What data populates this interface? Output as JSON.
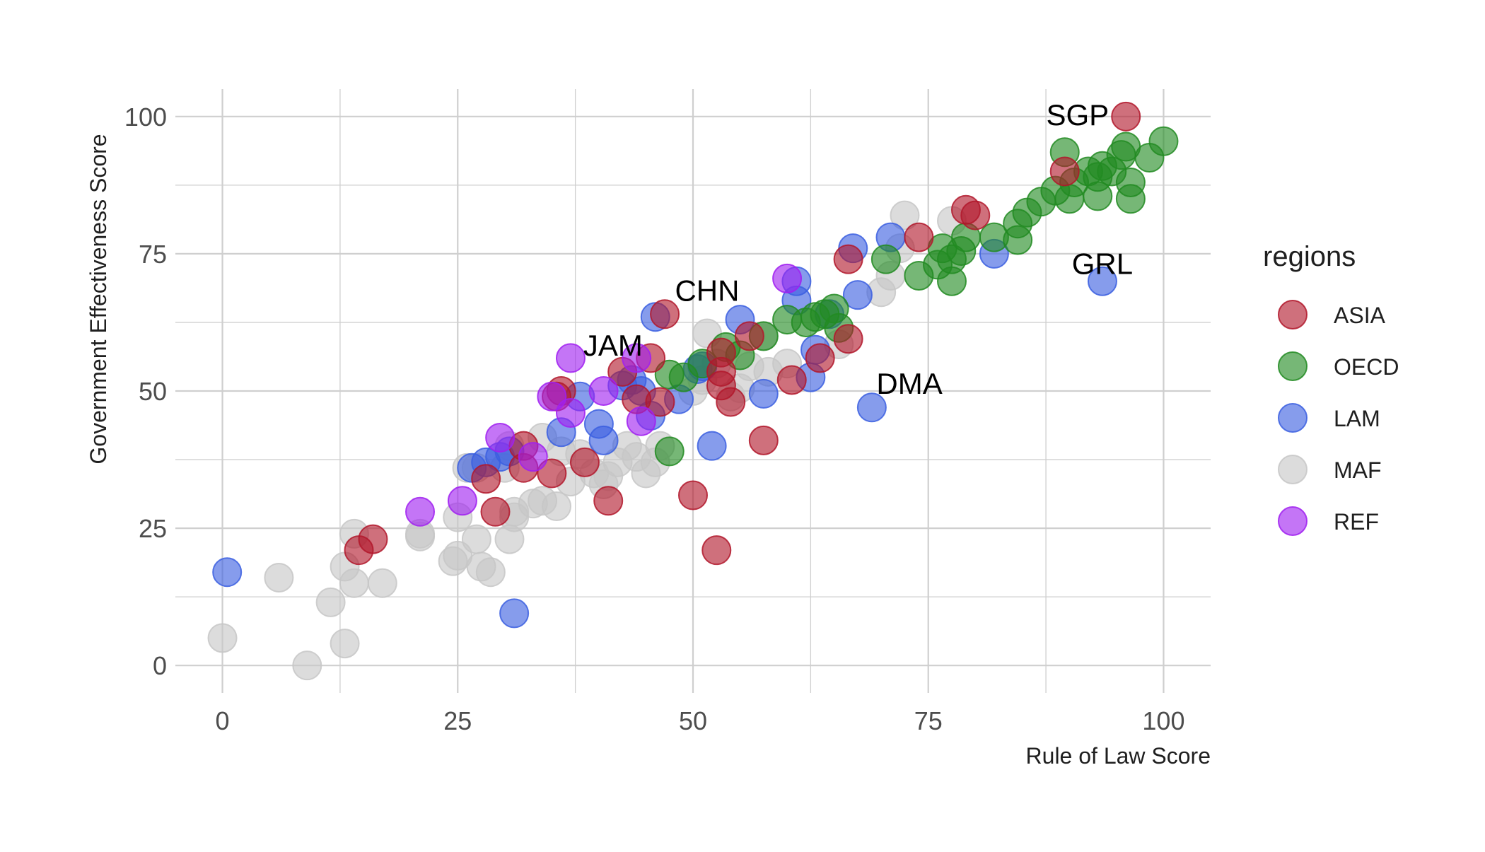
{
  "colors": {
    "ASIA": "#b2182b",
    "OECD": "#228b22",
    "LAM": "#3b5fe0",
    "MAF": "#c7c7c7",
    "REF": "#a020f0",
    "grid": "#cfcfcf",
    "background": "#ffffff"
  },
  "chart_data": {
    "type": "scatter",
    "title": "",
    "xlabel": "Rule of Law Score",
    "ylabel": "Government Effectiveness Score",
    "xlim": [
      -5,
      105
    ],
    "ylim": [
      -5,
      105
    ],
    "x_ticks": [
      0,
      25,
      50,
      75,
      100
    ],
    "y_ticks": [
      0,
      25,
      50,
      75,
      100
    ],
    "x_tick_labels": [
      "0",
      "25",
      "50",
      "75",
      "100"
    ],
    "y_tick_labels": [
      "0",
      "25",
      "50",
      "75",
      "100"
    ],
    "grid": true,
    "legend": {
      "title": "regions",
      "placement": "right",
      "entries": [
        "ASIA",
        "OECD",
        "LAM",
        "MAF",
        "REF"
      ]
    },
    "series": [
      {
        "name": "ASIA",
        "points": [
          [
            96,
            100
          ],
          [
            89.5,
            90
          ],
          [
            79,
            83
          ],
          [
            80,
            82
          ],
          [
            74,
            78
          ],
          [
            66.5,
            74
          ],
          [
            47,
            64
          ],
          [
            45.5,
            56
          ],
          [
            66.5,
            59.5
          ],
          [
            63.5,
            56
          ],
          [
            60.5,
            52
          ],
          [
            57.5,
            41
          ],
          [
            56,
            60
          ],
          [
            53,
            57
          ],
          [
            53,
            53.5
          ],
          [
            53,
            51
          ],
          [
            54,
            48
          ],
          [
            50,
            31
          ],
          [
            52.5,
            21
          ],
          [
            46.5,
            48
          ],
          [
            44,
            48.5
          ],
          [
            42.5,
            53.5
          ],
          [
            36,
            50
          ],
          [
            35.5,
            49
          ],
          [
            38.5,
            37
          ],
          [
            41,
            30
          ],
          [
            35,
            35
          ],
          [
            32,
            40
          ],
          [
            32,
            36
          ],
          [
            28,
            34
          ],
          [
            29,
            28
          ],
          [
            16,
            23
          ],
          [
            14.5,
            21
          ]
        ]
      },
      {
        "name": "OECD",
        "points": [
          [
            100,
            95.5
          ],
          [
            98.5,
            92.5
          ],
          [
            96,
            94.5
          ],
          [
            95.5,
            93
          ],
          [
            96.5,
            88
          ],
          [
            96.5,
            85
          ],
          [
            94.5,
            90
          ],
          [
            93.5,
            91
          ],
          [
            93,
            89
          ],
          [
            93,
            85.5
          ],
          [
            92,
            90
          ],
          [
            90.5,
            88
          ],
          [
            90,
            85
          ],
          [
            89.5,
            93.5
          ],
          [
            88.5,
            86.5
          ],
          [
            87,
            84.5
          ],
          [
            85.5,
            82.5
          ],
          [
            84.5,
            80.5
          ],
          [
            84.5,
            77.5
          ],
          [
            82,
            78
          ],
          [
            79,
            78
          ],
          [
            78.5,
            75.5
          ],
          [
            77.5,
            74
          ],
          [
            76.5,
            76
          ],
          [
            76,
            73
          ],
          [
            77.5,
            70
          ],
          [
            74,
            71
          ],
          [
            70.5,
            74
          ],
          [
            65.5,
            61.5
          ],
          [
            65,
            65
          ],
          [
            64,
            64
          ],
          [
            63,
            63.5
          ],
          [
            62,
            62.5
          ],
          [
            60,
            63
          ],
          [
            57.5,
            60
          ],
          [
            55,
            56.5
          ],
          [
            53.5,
            58
          ],
          [
            51,
            55
          ],
          [
            49,
            52.5
          ],
          [
            47.5,
            53
          ],
          [
            47.5,
            39
          ]
        ]
      },
      {
        "name": "LAM",
        "points": [
          [
            93.5,
            70
          ],
          [
            82,
            75
          ],
          [
            71,
            78
          ],
          [
            67,
            76
          ],
          [
            67.5,
            67.5
          ],
          [
            69,
            47
          ],
          [
            62.5,
            52.5
          ],
          [
            63,
            57.5
          ],
          [
            64.5,
            64
          ],
          [
            61,
            66.5
          ],
          [
            61,
            70
          ],
          [
            55,
            63
          ],
          [
            57.5,
            49.5
          ],
          [
            52,
            40
          ],
          [
            51,
            54.5
          ],
          [
            50.5,
            54
          ],
          [
            48.5,
            48.5
          ],
          [
            46,
            63.5
          ],
          [
            45.5,
            45.5
          ],
          [
            44.5,
            50
          ],
          [
            43.5,
            52
          ],
          [
            42.5,
            51
          ],
          [
            40.5,
            41
          ],
          [
            40,
            44
          ],
          [
            38,
            49
          ],
          [
            36,
            42.5
          ],
          [
            30.5,
            39
          ],
          [
            29.5,
            38
          ],
          [
            28,
            37
          ],
          [
            26.5,
            36
          ],
          [
            31,
            9.5
          ],
          [
            0.5,
            17
          ]
        ]
      },
      {
        "name": "MAF",
        "points": [
          [
            72.5,
            82
          ],
          [
            72,
            76
          ],
          [
            71,
            71
          ],
          [
            70,
            68
          ],
          [
            65.5,
            58.5
          ],
          [
            77.5,
            81
          ],
          [
            60,
            55
          ],
          [
            58,
            53.5
          ],
          [
            56,
            54.5
          ],
          [
            57.5,
            60
          ],
          [
            55,
            50.5
          ],
          [
            54,
            49
          ],
          [
            51,
            52
          ],
          [
            50,
            50
          ],
          [
            52.5,
            55
          ],
          [
            51.5,
            60.5
          ],
          [
            46.5,
            40
          ],
          [
            46,
            37
          ],
          [
            45,
            35
          ],
          [
            44,
            38
          ],
          [
            43,
            40
          ],
          [
            42,
            37
          ],
          [
            41,
            34.5
          ],
          [
            40.5,
            33
          ],
          [
            39.5,
            35
          ],
          [
            38,
            38.5
          ],
          [
            37,
            33.5
          ],
          [
            36,
            39
          ],
          [
            35.5,
            29
          ],
          [
            34,
            30
          ],
          [
            33,
            29.5
          ],
          [
            34,
            41.5
          ],
          [
            30.5,
            40
          ],
          [
            31,
            28
          ],
          [
            30,
            36
          ],
          [
            27,
            36
          ],
          [
            26,
            36
          ],
          [
            25,
            27
          ],
          [
            24.5,
            19
          ],
          [
            25,
            20
          ],
          [
            27,
            23
          ],
          [
            27.5,
            18
          ],
          [
            28.5,
            17
          ],
          [
            30.5,
            23
          ],
          [
            31,
            27
          ],
          [
            21,
            24
          ],
          [
            21,
            23.5
          ],
          [
            17,
            15
          ],
          [
            14,
            24
          ],
          [
            14,
            15
          ],
          [
            13,
            18
          ],
          [
            11.5,
            11.5
          ],
          [
            13,
            4
          ],
          [
            9,
            0
          ],
          [
            6,
            16
          ],
          [
            0,
            5
          ]
        ]
      },
      {
        "name": "REF",
        "points": [
          [
            60,
            70.5
          ],
          [
            44,
            56
          ],
          [
            44.5,
            44.5
          ],
          [
            37,
            56
          ],
          [
            37,
            46
          ],
          [
            40.5,
            50
          ],
          [
            35,
            49
          ],
          [
            33,
            38
          ],
          [
            29.5,
            41.5
          ],
          [
            25.5,
            30
          ],
          [
            21,
            28
          ]
        ]
      }
    ],
    "annotations": [
      {
        "label": "SGP",
        "x": 96,
        "y": 100
      },
      {
        "label": "GRL",
        "x": 93.5,
        "y": 70
      },
      {
        "label": "CHN",
        "x": 51.5,
        "y": 68
      },
      {
        "label": "JAM",
        "x": 41.5,
        "y": 58
      },
      {
        "label": "DMA",
        "x": 73,
        "y": 51
      }
    ]
  }
}
